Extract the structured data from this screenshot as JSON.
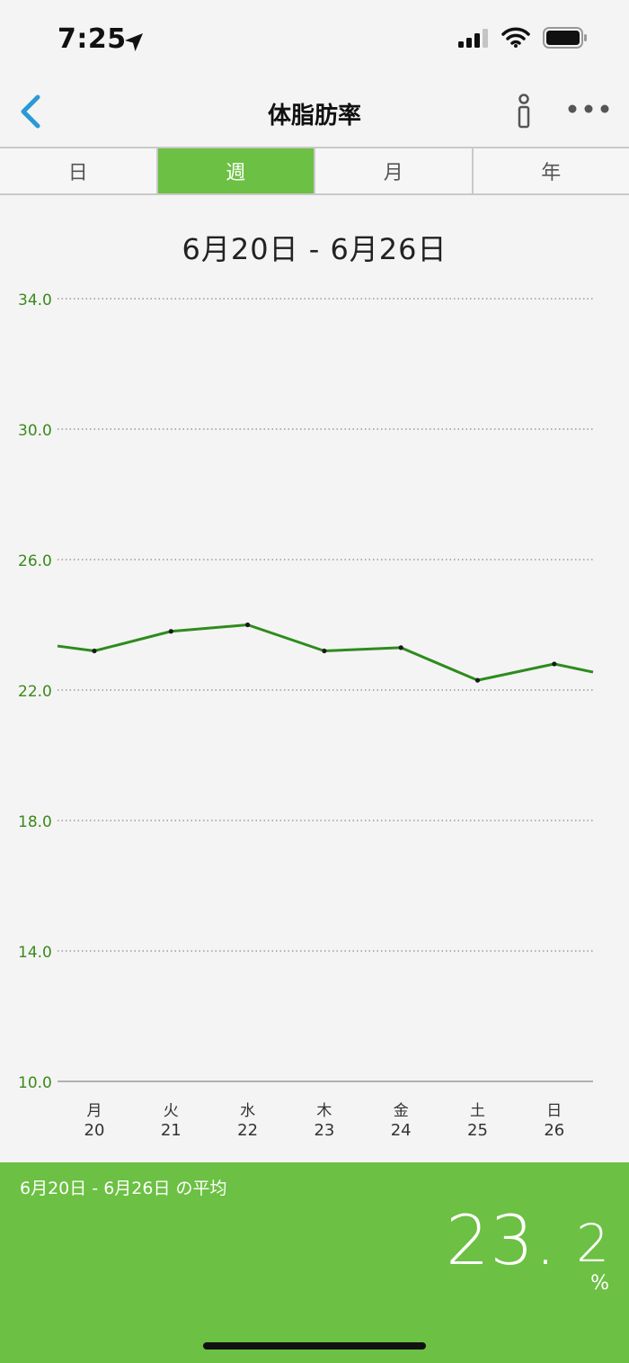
{
  "status": {
    "time": "7:25",
    "icons": [
      "location-arrow-icon",
      "signal-icon",
      "wifi-icon",
      "battery-icon"
    ]
  },
  "nav": {
    "title": "体脂肪率",
    "icons": [
      "back-chevron-icon",
      "info-icon",
      "more-icon"
    ]
  },
  "tabs": [
    {
      "label": "日",
      "active": false
    },
    {
      "label": "週",
      "active": true
    },
    {
      "label": "月",
      "active": false
    },
    {
      "label": "年",
      "active": false
    }
  ],
  "range_title": "6月20日 - 6月26日",
  "chart_data": {
    "type": "line",
    "title": "",
    "xlabel": "",
    "ylabel": "",
    "ylim": [
      10.0,
      34.0
    ],
    "yticks": [
      "34.0",
      "30.0",
      "26.0",
      "22.0",
      "18.0",
      "14.0",
      "10.0"
    ],
    "categories": [
      {
        "weekday": "月",
        "day": "20"
      },
      {
        "weekday": "火",
        "day": "21"
      },
      {
        "weekday": "水",
        "day": "22"
      },
      {
        "weekday": "木",
        "day": "23"
      },
      {
        "weekday": "金",
        "day": "24"
      },
      {
        "weekday": "土",
        "day": "25"
      },
      {
        "weekday": "日",
        "day": "26"
      }
    ],
    "series": [
      {
        "values": [
          23.2,
          23.8,
          24.0,
          23.2,
          23.3,
          22.3,
          22.8
        ],
        "lead_in": 23.35,
        "lead_out": 22.55
      }
    ],
    "grid": true,
    "line_color": "#2e8b1e",
    "axis_label_color": "#3a8a1a"
  },
  "summary": {
    "label": "6月20日 - 6月26日 の平均",
    "value_int": "23.",
    "value_dec": "2",
    "unit": "%"
  },
  "colors": {
    "accent": "#6cc043",
    "back": "#2a9ad6"
  }
}
